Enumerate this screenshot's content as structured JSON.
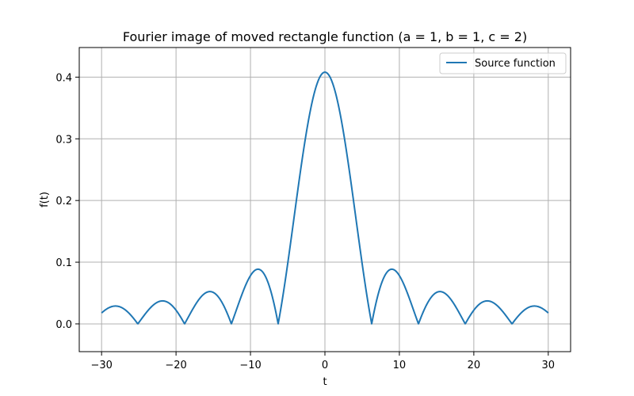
{
  "chart_data": {
    "type": "line",
    "title": "Fourier image of moved rectangle function (a = 1, b = 1, c = 2)",
    "xlabel": "t",
    "ylabel": "f(t)",
    "xlim": [
      -33,
      33
    ],
    "ylim": [
      -0.045,
      0.448
    ],
    "xticks": [
      -30,
      -20,
      -10,
      0,
      10,
      20,
      30
    ],
    "xtick_labels": [
      "−30",
      "−20",
      "−10",
      "0",
      "10",
      "20",
      "30"
    ],
    "yticks": [
      0.0,
      0.1,
      0.2,
      0.3,
      0.4
    ],
    "ytick_labels": [
      "0.0",
      "0.1",
      "0.2",
      "0.3",
      "0.4"
    ],
    "grid": true,
    "legend_position": "top-right",
    "series": [
      {
        "name": "Source function",
        "color": "#1f77b4",
        "function": "abs(sin(t/2))/(sqrt(2*pi)*abs(t/2)) * 1.0233",
        "x_range": [
          -30,
          30
        ],
        "peak": {
          "x": 0,
          "y": 0.408
        },
        "zeros": [
          -25.13,
          -18.85,
          -12.57,
          -6.28,
          6.28,
          12.57,
          18.85,
          25.13
        ],
        "lobe_maxima": [
          {
            "x": -27.6,
            "y": 0.032
          },
          {
            "x": -21.3,
            "y": 0.039
          },
          {
            "x": -15.1,
            "y": 0.054
          },
          {
            "x": -8.9,
            "y": 0.089
          },
          {
            "x": 8.9,
            "y": 0.089
          },
          {
            "x": 15.1,
            "y": 0.054
          },
          {
            "x": 21.3,
            "y": 0.039
          },
          {
            "x": 27.6,
            "y": 0.032
          }
        ],
        "endpoints": [
          {
            "x": -30,
            "y": 0.012
          },
          {
            "x": 30,
            "y": 0.012
          }
        ]
      }
    ]
  }
}
